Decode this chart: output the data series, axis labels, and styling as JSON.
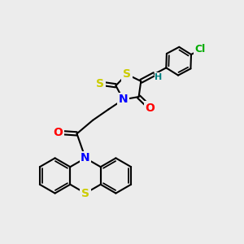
{
  "background_color": "#ececec",
  "atom_colors": {
    "S": "#cccc00",
    "N": "#0000ff",
    "O": "#ff0000",
    "Cl": "#00aa00",
    "C": "#000000",
    "H": "#008080"
  },
  "bond_color": "#000000",
  "bond_width": 1.5,
  "dbo": 0.07,
  "fs": 10,
  "fss": 8
}
